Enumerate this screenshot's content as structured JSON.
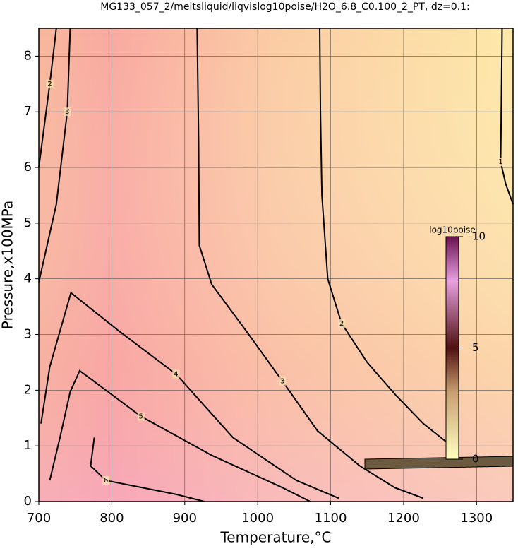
{
  "chart_data": {
    "type": "contour",
    "title": "MG133_057_2/meltsliquid/liqvislog10poise/H2O_6.8_C0.100_2_PT, dz=0.1:",
    "x_label": "Temperature,°C",
    "y_label": "Pressure,x100MPa",
    "xlim": [
      700,
      1350
    ],
    "ylim": [
      0,
      8.5
    ],
    "xticks": [
      700,
      800,
      900,
      1000,
      1100,
      1200,
      1300
    ],
    "yticks": [
      0,
      1,
      2,
      3,
      4,
      5,
      6,
      7,
      8
    ],
    "grid": true,
    "contours": [
      {
        "level": 1,
        "x": [
          1335,
          1334,
          1333,
          1340,
          1350
        ],
        "y": [
          8.5,
          7.2,
          6.1,
          5.7,
          5.34
        ]
      },
      {
        "level": 2,
        "x": [
          1085,
          1086,
          1088,
          1096,
          1115,
          1150,
          1190,
          1227,
          1275
        ],
        "y": [
          8.5,
          7.0,
          5.5,
          4.0,
          3.2,
          2.5,
          1.9,
          1.4,
          0.9
        ]
      },
      {
        "level": 3,
        "x": [
          917,
          919,
          920,
          937,
          985,
          1034,
          1082,
          1140,
          1188,
          1227
        ],
        "y": [
          8.5,
          6.5,
          4.6,
          3.9,
          3.05,
          2.16,
          1.27,
          0.64,
          0.25,
          0.06
        ]
      },
      {
        "level": 4,
        "x": [
          703,
          715,
          744,
          811,
          888,
          966,
          1053,
          1111
        ],
        "y": [
          1.4,
          2.42,
          3.75,
          3.05,
          2.29,
          1.15,
          0.38,
          0.06
        ]
      },
      {
        "level": 5,
        "x": [
          715,
          729,
          743,
          756,
          840,
          937,
          1034,
          1072
        ],
        "y": [
          0.38,
          1.15,
          1.97,
          2.35,
          1.53,
          0.83,
          0.25,
          0
        ]
      },
      {
        "level": 6,
        "x": [
          776,
          771,
          792,
          888,
          927
        ],
        "y": [
          1.15,
          0.64,
          0.38,
          0.13,
          0
        ]
      },
      {
        "level": 3,
        "x": [
          700,
          724,
          739,
          743
        ],
        "y": [
          3.94,
          5.34,
          7.0,
          8.5
        ]
      },
      {
        "level": 2,
        "x": [
          700,
          705,
          715,
          724
        ],
        "y": [
          6.0,
          6.5,
          7.5,
          8.5
        ]
      }
    ],
    "colorbar": {
      "label": "log10poise",
      "clim": [
        0,
        10
      ],
      "ticks": [
        0,
        5,
        10
      ]
    }
  }
}
